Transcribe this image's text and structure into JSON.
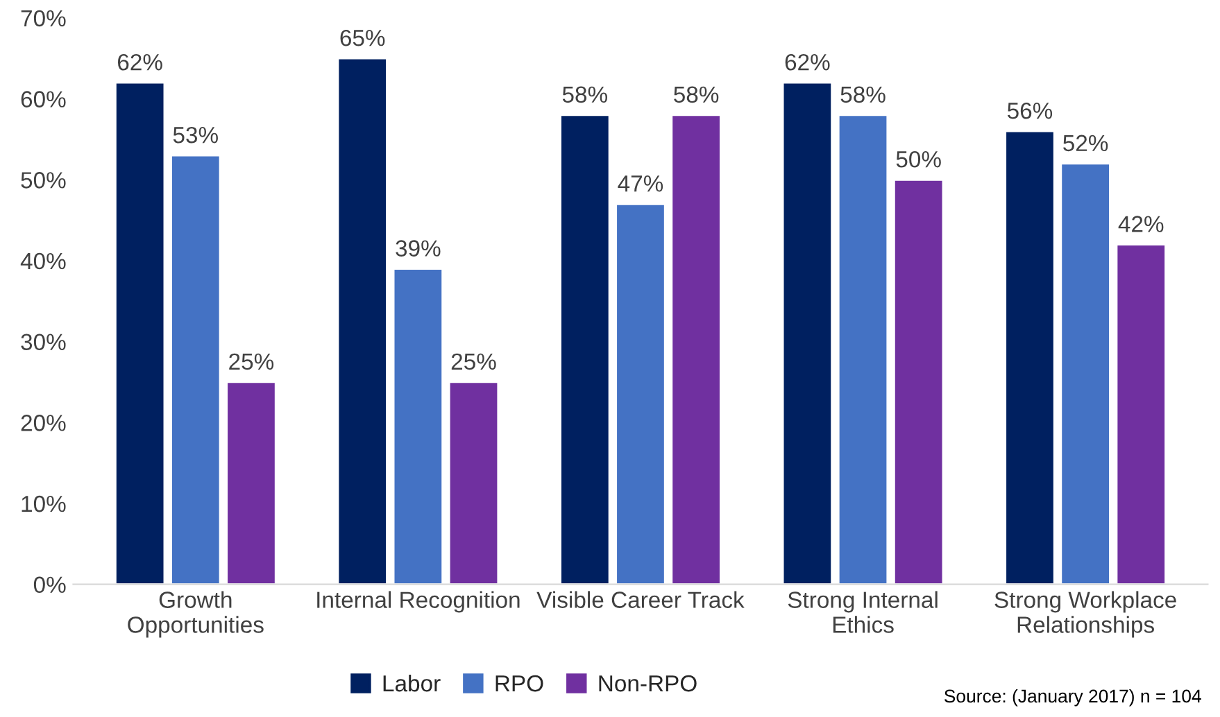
{
  "chart_data": {
    "type": "bar",
    "categories": [
      "Growth\nOpportunities",
      "Internal Recognition",
      "Visible Career Track",
      "Strong Internal\nEthics",
      "Strong Workplace\nRelationships"
    ],
    "series": [
      {
        "name": "Labor",
        "color": "#002060",
        "values": [
          62,
          65,
          58,
          62,
          56
        ],
        "value_labels": [
          "62%",
          "65%",
          "58%",
          "62%",
          "56%"
        ]
      },
      {
        "name": "RPO",
        "color": "#4472c4",
        "values": [
          53,
          39,
          47,
          58,
          52
        ],
        "value_labels": [
          "53%",
          "39%",
          "47%",
          "58%",
          "52%"
        ]
      },
      {
        "name": "Non-RPO",
        "color": "#7030a0",
        "values": [
          25,
          25,
          58,
          50,
          42
        ],
        "value_labels": [
          "25%",
          "25%",
          "58%",
          "50%",
          "42%"
        ]
      }
    ],
    "ylim": [
      0,
      70
    ],
    "yticks": [
      {
        "value": 0,
        "label": "0%"
      },
      {
        "value": 10,
        "label": "10%"
      },
      {
        "value": 20,
        "label": "20%"
      },
      {
        "value": 30,
        "label": "30%"
      },
      {
        "value": 40,
        "label": "40%"
      },
      {
        "value": 50,
        "label": "50%"
      },
      {
        "value": 60,
        "label": "60%"
      },
      {
        "value": 70,
        "label": "70%"
      }
    ],
    "grid": false,
    "legend": "bottom",
    "annotations": [
      "Source: (January 2017) n = 104"
    ]
  }
}
